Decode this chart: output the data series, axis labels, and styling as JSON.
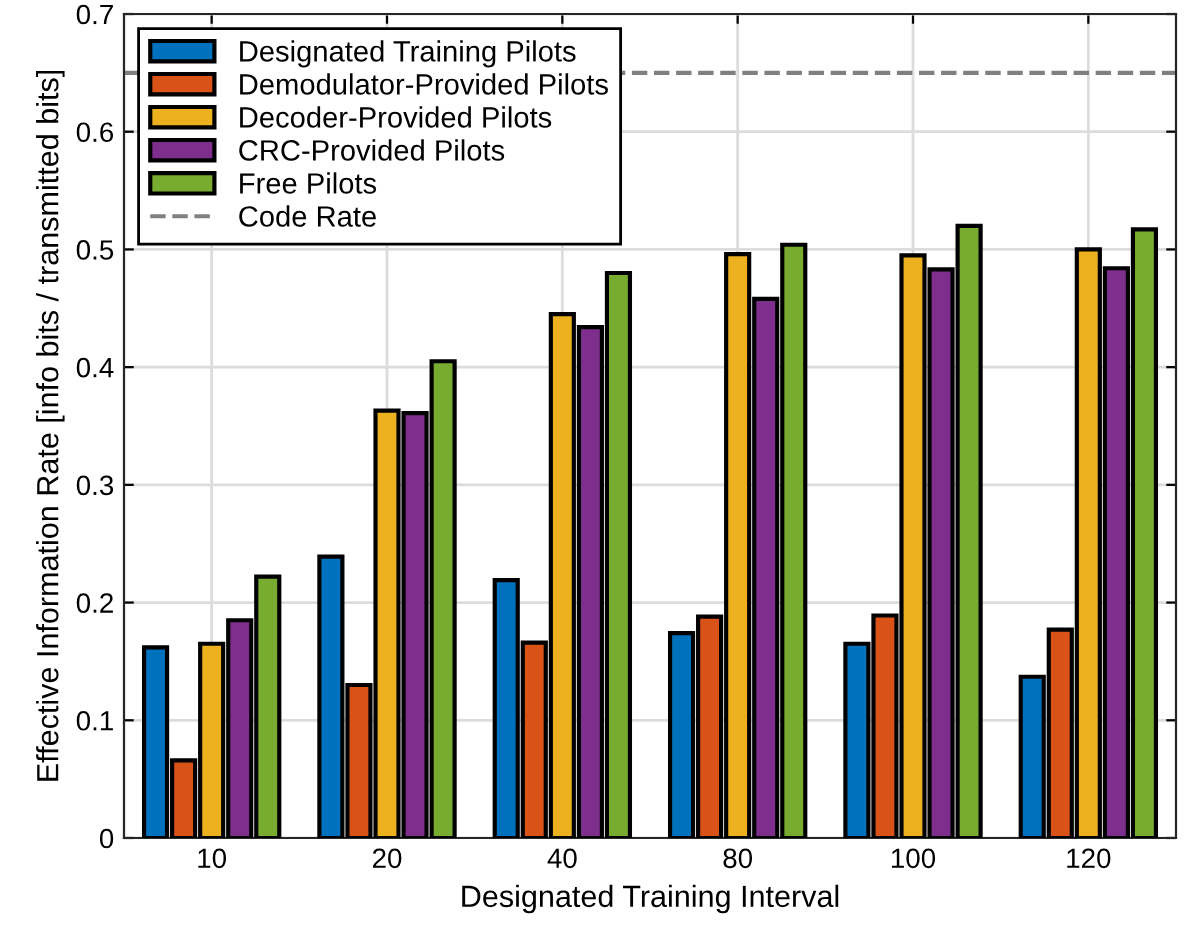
{
  "chart_data": {
    "type": "bar",
    "xlabel": "Designated Training Interval",
    "ylabel": "Effective Information Rate [info bits / transmitted bits]",
    "categories": [
      "10",
      "20",
      "40",
      "80",
      "100",
      "120"
    ],
    "series": [
      {
        "name": "Designated Training Pilots",
        "color": "#0072bd",
        "values": [
          0.162,
          0.239,
          0.219,
          0.174,
          0.165,
          0.137
        ]
      },
      {
        "name": "Demodulator-Provided Pilots",
        "color": "#d95319",
        "values": [
          0.066,
          0.13,
          0.166,
          0.188,
          0.189,
          0.177
        ]
      },
      {
        "name": "Decoder-Provided Pilots",
        "color": "#edb120",
        "values": [
          0.165,
          0.363,
          0.445,
          0.496,
          0.495,
          0.5
        ]
      },
      {
        "name": "CRC-Provided Pilots",
        "color": "#7e2f8e",
        "values": [
          0.185,
          0.361,
          0.434,
          0.458,
          0.483,
          0.484
        ]
      },
      {
        "name": "Free Pilots",
        "color": "#77ac30",
        "values": [
          0.222,
          0.405,
          0.48,
          0.504,
          0.52,
          0.517
        ]
      }
    ],
    "ref_lines": [
      {
        "axis": "y",
        "value": 0.65,
        "label": "Code Rate",
        "color": "#808080",
        "line_style": "dashed"
      }
    ],
    "ylim": [
      0,
      0.7
    ],
    "yticks": [
      0,
      0.1,
      0.2,
      0.3,
      0.4,
      0.5,
      0.6,
      0.7
    ],
    "grid": true,
    "legend": "top left"
  }
}
